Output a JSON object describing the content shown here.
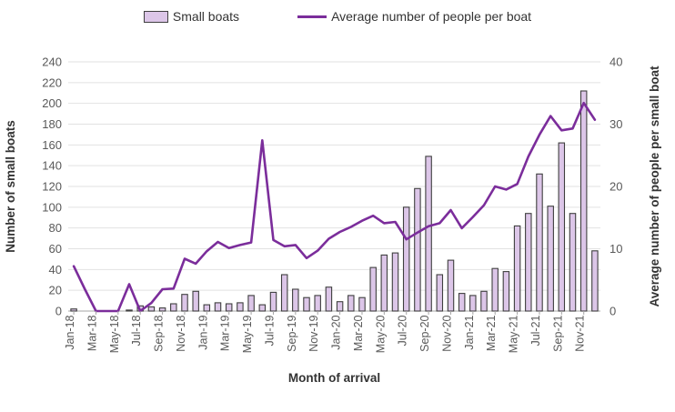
{
  "legend": {
    "bar_label": "Small boats",
    "line_label": "Average number of people per boat"
  },
  "chart_data": {
    "type": "bar+line combo",
    "title": "",
    "xlabel": "Month of arrival",
    "ylabel_left": "Number of small boats",
    "ylabel_right": "Average number of people per small boat",
    "categories": [
      "Jan-18",
      "Feb-18",
      "Mar-18",
      "Apr-18",
      "May-18",
      "Jun-18",
      "Jul-18",
      "Aug-18",
      "Sep-18",
      "Oct-18",
      "Nov-18",
      "Dec-18",
      "Jan-19",
      "Feb-19",
      "Mar-19",
      "Apr-19",
      "May-19",
      "Jun-19",
      "Jul-19",
      "Aug-19",
      "Sep-19",
      "Oct-19",
      "Nov-19",
      "Dec-19",
      "Jan-20",
      "Feb-20",
      "Mar-20",
      "Apr-20",
      "May-20",
      "Jun-20",
      "Jul-20",
      "Aug-20",
      "Sep-20",
      "Oct-20",
      "Nov-20",
      "Dec-20",
      "Jan-21",
      "Feb-21",
      "Mar-21",
      "Apr-21",
      "May-21",
      "Jun-21",
      "Jul-21",
      "Aug-21",
      "Sep-21",
      "Oct-21",
      "Nov-21",
      "Dec-21"
    ],
    "series": [
      {
        "name": "Small boats",
        "type": "bar",
        "axis": "left",
        "values": [
          2,
          0,
          0,
          0,
          0,
          1,
          5,
          4,
          3,
          7,
          16,
          19,
          6,
          8,
          7,
          8,
          15,
          6,
          18,
          35,
          21,
          13,
          15,
          23,
          9,
          15,
          13,
          42,
          54,
          56,
          100,
          118,
          149,
          35,
          49,
          17,
          15,
          19,
          41,
          38,
          82,
          94,
          132,
          101,
          162,
          94,
          212,
          58
        ]
      },
      {
        "name": "Average number of people per boat",
        "type": "line",
        "axis": "right",
        "values": [
          7.2,
          3.5,
          0,
          0,
          0,
          4.3,
          0,
          1.3,
          3.5,
          3.6,
          8.4,
          7.6,
          9.6,
          11.1,
          10.1,
          10.6,
          11,
          27.4,
          11.4,
          10.4,
          10.6,
          8.5,
          9.7,
          11.6,
          12.7,
          13.5,
          14.5,
          15.3,
          14.1,
          14.3,
          11.5,
          12.6,
          13.6,
          14.1,
          16.2,
          13.3,
          15.1,
          17,
          20,
          19.5,
          20.4,
          24.8,
          28.3,
          31.3,
          29,
          29.3,
          33.4,
          30.7
        ]
      }
    ],
    "ylim_left": [
      0,
      240
    ],
    "ylim_right": [
      0,
      40
    ],
    "yticks_left": [
      0,
      20,
      40,
      60,
      80,
      100,
      120,
      140,
      160,
      180,
      200,
      220,
      240
    ],
    "yticks_right": [
      0,
      10,
      20,
      30,
      40
    ],
    "xtick_labels": [
      "Jan-18",
      "Mar-18",
      "May-18",
      "Jul-18",
      "Sep-18",
      "Nov-18",
      "Jan-19",
      "Mar-19",
      "May-19",
      "Jul-19",
      "Sep-19",
      "Nov-19",
      "Jan-20",
      "Mar-20",
      "May-20",
      "Jul-20",
      "Sep-20",
      "Nov-20",
      "Jan-21",
      "Mar-21",
      "May-21",
      "Jul-21",
      "Sep-21",
      "Nov-21"
    ],
    "x_label_every": 2,
    "grid": true,
    "legend_position": "top",
    "colors": {
      "bar_fill": "#dcc6e8",
      "bar_stroke": "#3f3f3f",
      "line": "#7b2d9b",
      "grid": "#e2e2e2",
      "axis": "#a6a6a6",
      "tick_text": "#595959",
      "title_text": "#333333"
    }
  }
}
